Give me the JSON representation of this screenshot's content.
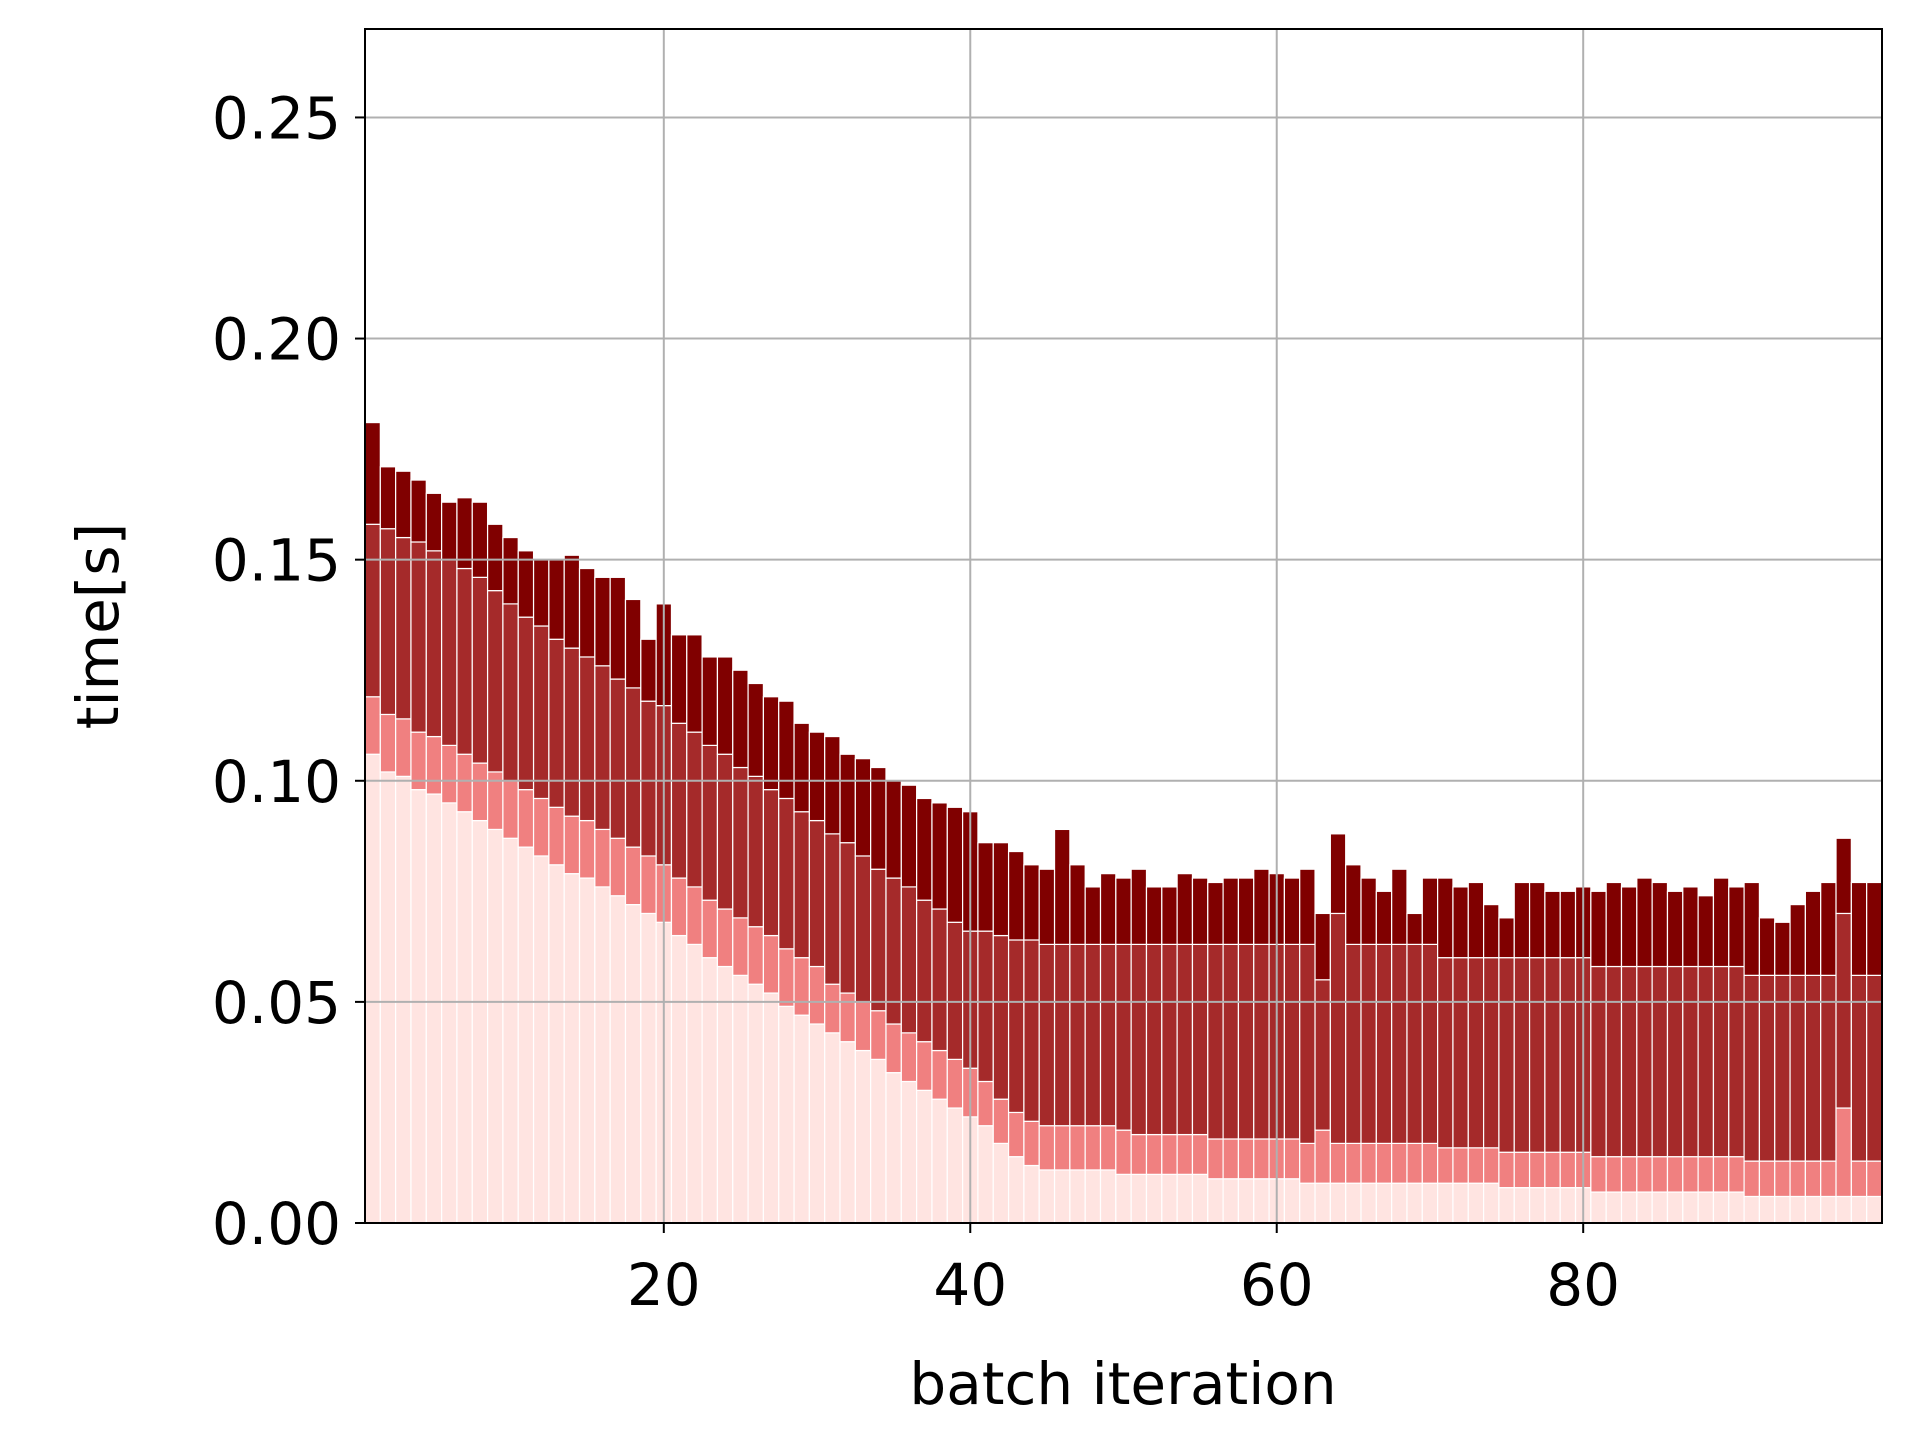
{
  "chart_data": {
    "type": "stacked_bar",
    "xlabel": "batch iteration",
    "ylabel": "time[s]",
    "x": [
      1,
      2,
      3,
      4,
      5,
      6,
      7,
      8,
      9,
      10,
      11,
      12,
      13,
      14,
      15,
      16,
      17,
      18,
      19,
      20,
      21,
      22,
      23,
      24,
      25,
      26,
      27,
      28,
      29,
      30,
      31,
      32,
      33,
      34,
      35,
      36,
      37,
      38,
      39,
      40,
      41,
      42,
      43,
      44,
      45,
      46,
      47,
      48,
      49,
      50,
      51,
      52,
      53,
      54,
      55,
      56,
      57,
      58,
      59,
      60,
      61,
      62,
      63,
      64,
      65,
      66,
      67,
      68,
      69,
      70,
      71,
      72,
      73,
      74,
      75,
      76,
      77,
      78,
      79,
      80,
      81,
      82,
      83,
      84,
      85,
      86,
      87,
      88,
      89,
      90,
      91,
      92,
      93,
      94,
      95,
      96,
      97,
      98,
      99
    ],
    "series": [
      {
        "color": "#ffe4e1",
        "values": [
          0.106,
          0.102,
          0.101,
          0.098,
          0.097,
          0.095,
          0.093,
          0.091,
          0.089,
          0.087,
          0.085,
          0.083,
          0.081,
          0.079,
          0.078,
          0.076,
          0.074,
          0.072,
          0.07,
          0.068,
          0.065,
          0.063,
          0.06,
          0.058,
          0.056,
          0.054,
          0.052,
          0.049,
          0.047,
          0.045,
          0.043,
          0.041,
          0.039,
          0.037,
          0.034,
          0.032,
          0.03,
          0.028,
          0.026,
          0.024,
          0.022,
          0.018,
          0.015,
          0.013,
          0.012,
          0.012,
          0.012,
          0.012,
          0.012,
          0.011,
          0.011,
          0.011,
          0.011,
          0.011,
          0.011,
          0.01,
          0.01,
          0.01,
          0.01,
          0.01,
          0.01,
          0.009,
          0.009,
          0.009,
          0.009,
          0.009,
          0.009,
          0.009,
          0.009,
          0.009,
          0.009,
          0.009,
          0.009,
          0.009,
          0.008,
          0.008,
          0.008,
          0.008,
          0.008,
          0.008,
          0.007,
          0.007,
          0.007,
          0.007,
          0.007,
          0.007,
          0.007,
          0.007,
          0.007,
          0.007,
          0.006,
          0.006,
          0.006,
          0.006,
          0.006,
          0.006,
          0.006,
          0.006,
          0.006
        ]
      },
      {
        "color": "#f08080",
        "values": [
          0.013,
          0.013,
          0.013,
          0.013,
          0.013,
          0.013,
          0.013,
          0.013,
          0.013,
          0.013,
          0.013,
          0.013,
          0.013,
          0.013,
          0.013,
          0.013,
          0.013,
          0.013,
          0.013,
          0.013,
          0.013,
          0.013,
          0.013,
          0.013,
          0.013,
          0.013,
          0.013,
          0.013,
          0.013,
          0.013,
          0.011,
          0.011,
          0.011,
          0.011,
          0.011,
          0.011,
          0.011,
          0.011,
          0.011,
          0.011,
          0.01,
          0.01,
          0.01,
          0.01,
          0.01,
          0.01,
          0.01,
          0.01,
          0.01,
          0.01,
          0.009,
          0.009,
          0.009,
          0.009,
          0.009,
          0.009,
          0.009,
          0.009,
          0.009,
          0.009,
          0.009,
          0.009,
          0.012,
          0.009,
          0.009,
          0.009,
          0.009,
          0.009,
          0.009,
          0.009,
          0.008,
          0.008,
          0.008,
          0.008,
          0.008,
          0.008,
          0.008,
          0.008,
          0.008,
          0.008,
          0.008,
          0.008,
          0.008,
          0.008,
          0.008,
          0.008,
          0.008,
          0.008,
          0.008,
          0.008,
          0.008,
          0.008,
          0.008,
          0.008,
          0.008,
          0.008,
          0.02,
          0.008,
          0.008
        ]
      },
      {
        "color": "#a52a2a",
        "values": [
          0.039,
          0.042,
          0.041,
          0.043,
          0.042,
          0.042,
          0.042,
          0.042,
          0.041,
          0.04,
          0.039,
          0.039,
          0.038,
          0.038,
          0.037,
          0.037,
          0.036,
          0.036,
          0.035,
          0.036,
          0.035,
          0.035,
          0.035,
          0.035,
          0.034,
          0.034,
          0.033,
          0.034,
          0.033,
          0.033,
          0.034,
          0.034,
          0.033,
          0.032,
          0.033,
          0.033,
          0.032,
          0.032,
          0.031,
          0.031,
          0.034,
          0.037,
          0.039,
          0.041,
          0.041,
          0.041,
          0.041,
          0.041,
          0.041,
          0.042,
          0.043,
          0.043,
          0.043,
          0.043,
          0.043,
          0.044,
          0.044,
          0.044,
          0.044,
          0.044,
          0.044,
          0.045,
          0.034,
          0.052,
          0.045,
          0.045,
          0.045,
          0.045,
          0.045,
          0.045,
          0.043,
          0.043,
          0.043,
          0.043,
          0.044,
          0.044,
          0.044,
          0.044,
          0.044,
          0.044,
          0.043,
          0.043,
          0.043,
          0.043,
          0.043,
          0.043,
          0.043,
          0.043,
          0.043,
          0.043,
          0.042,
          0.042,
          0.042,
          0.042,
          0.042,
          0.042,
          0.044,
          0.042,
          0.042
        ]
      },
      {
        "color": "#800000",
        "values": [
          0.023,
          0.014,
          0.015,
          0.014,
          0.013,
          0.013,
          0.016,
          0.017,
          0.015,
          0.015,
          0.015,
          0.015,
          0.018,
          0.021,
          0.02,
          0.02,
          0.023,
          0.02,
          0.014,
          0.023,
          0.02,
          0.022,
          0.02,
          0.022,
          0.022,
          0.021,
          0.021,
          0.022,
          0.02,
          0.02,
          0.022,
          0.02,
          0.022,
          0.023,
          0.022,
          0.023,
          0.023,
          0.024,
          0.026,
          0.027,
          0.02,
          0.021,
          0.02,
          0.017,
          0.017,
          0.026,
          0.018,
          0.013,
          0.016,
          0.015,
          0.017,
          0.013,
          0.013,
          0.016,
          0.015,
          0.014,
          0.015,
          0.015,
          0.017,
          0.016,
          0.015,
          0.017,
          0.015,
          0.018,
          0.018,
          0.015,
          0.012,
          0.017,
          0.007,
          0.015,
          0.018,
          0.016,
          0.017,
          0.012,
          0.009,
          0.017,
          0.017,
          0.015,
          0.015,
          0.016,
          0.017,
          0.019,
          0.018,
          0.02,
          0.019,
          0.017,
          0.018,
          0.016,
          0.02,
          0.018,
          0.021,
          0.013,
          0.012,
          0.016,
          0.019,
          0.021,
          0.017,
          0.021,
          0.021
        ]
      }
    ],
    "xlim": [
      0.5,
      99.5
    ],
    "xticks": [
      20,
      40,
      60,
      80
    ],
    "ylim": [
      0,
      0.27
    ],
    "yticks": [
      {
        "value": 0,
        "label": "0.00"
      },
      0.05,
      {
        "value": 0.1,
        "label": "0.10"
      },
      0.15,
      {
        "value": 0.2,
        "label": "0.20"
      },
      0.25
    ],
    "grid": true
  }
}
